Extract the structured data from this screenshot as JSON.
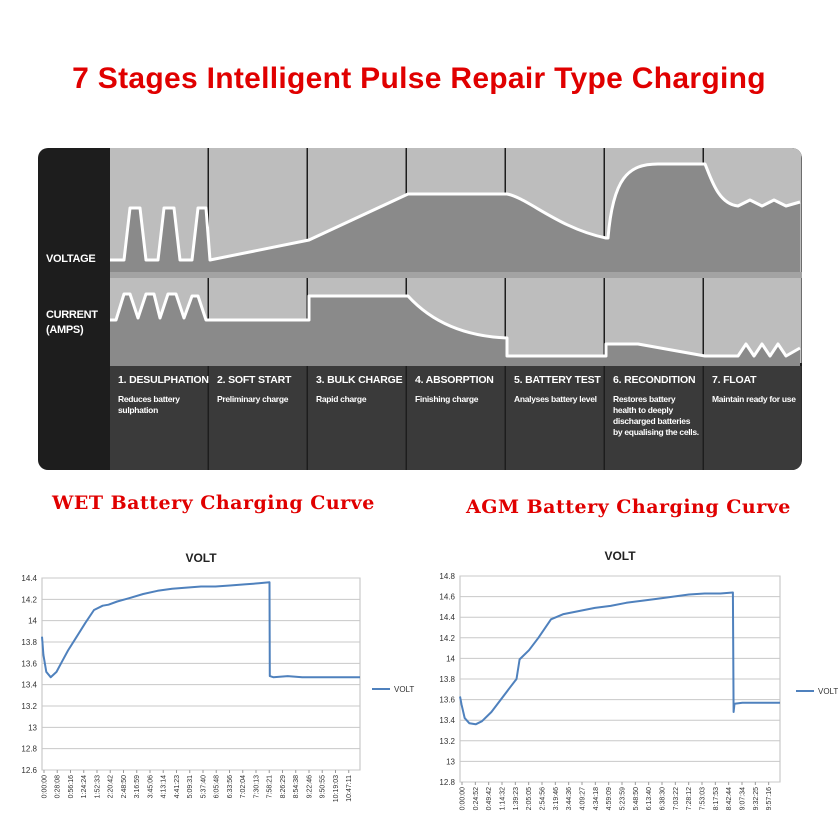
{
  "page": {
    "title": "7 Stages Intelligent Pulse Repair Type Charging"
  },
  "stage_diagram": {
    "row_labels": {
      "voltage": "VOLTAGE",
      "current": "CURRENT\n(AMPS)"
    },
    "stages": [
      {
        "name": "1. DESULPHATION",
        "desc": "Reduces battery sulphation"
      },
      {
        "name": "2. SOFT START",
        "desc": "Preliminary charge"
      },
      {
        "name": "3. BULK CHARGE",
        "desc": "Rapid charge"
      },
      {
        "name": "4. ABSORPTION",
        "desc": "Finishing charge"
      },
      {
        "name": "5. BATTERY TEST",
        "desc": "Analyses battery level"
      },
      {
        "name": "6. RECONDITION",
        "desc": "Restores battery health to deeply discharged batteries by equalising the cells."
      },
      {
        "name": "7. FLOAT",
        "desc": "Maintain ready for use"
      }
    ],
    "colors": {
      "background": "#1d1d1d",
      "cell_light": "#bdbdbd",
      "cell_dark": "#8a8a8a",
      "curve": "#ffffff"
    }
  },
  "chart_titles": {
    "wet": "WET Battery Charging Curve",
    "agm": "AGM Battery Charging Curve"
  },
  "chart_data": [
    {
      "type": "line",
      "title": "VOLT",
      "xlabel": "",
      "ylabel": "",
      "ylim": [
        12.6,
        14.4
      ],
      "yticks": [
        "14.4",
        "14.2",
        "14",
        "13.8",
        "13.6",
        "13.4",
        "13.2",
        "13",
        "12.8",
        "12.6"
      ],
      "x_tick_labels": [
        "0:00:00",
        "0:28:08",
        "0:56:16",
        "1:24:24",
        "1:52:33",
        "2:20:42",
        "2:48:50",
        "3:16:59",
        "3:45:06",
        "4:13:14",
        "4:41:23",
        "5:09:31",
        "5:37:40",
        "6:05:48",
        "6:33:56",
        "7:02:04",
        "7:30:13",
        "7:58:21",
        "8:26:29",
        "8:54:38",
        "9:22:46",
        "9:50:55",
        "10:19:03",
        "10:47:11"
      ],
      "x_range_hours": [
        0,
        11.0
      ],
      "grid": true,
      "legend_position": "right",
      "series": [
        {
          "name": "VOLT",
          "color": "#4f81bd",
          "x_hours": [
            0,
            0.05,
            0.15,
            0.3,
            0.5,
            0.7,
            0.9,
            1.2,
            1.5,
            1.8,
            2.1,
            2.3,
            2.6,
            3.0,
            3.5,
            4.0,
            4.5,
            5.0,
            5.5,
            6.0,
            6.5,
            7.0,
            7.5,
            7.87,
            7.88,
            8.0,
            8.5,
            9.0,
            9.5,
            10.0,
            10.5,
            11.0
          ],
          "values": [
            13.85,
            13.68,
            13.52,
            13.47,
            13.52,
            13.62,
            13.72,
            13.85,
            13.98,
            14.1,
            14.14,
            14.15,
            14.18,
            14.21,
            14.25,
            14.28,
            14.3,
            14.31,
            14.32,
            14.32,
            14.33,
            14.34,
            14.35,
            14.36,
            13.48,
            13.47,
            13.48,
            13.47,
            13.47,
            13.47,
            13.47,
            13.47
          ]
        }
      ]
    },
    {
      "type": "line",
      "title": "VOLT",
      "xlabel": "",
      "ylabel": "",
      "ylim": [
        12.8,
        14.8
      ],
      "yticks": [
        "14.8",
        "14.6",
        "14.4",
        "14.2",
        "14",
        "13.8",
        "13.6",
        "13.4",
        "13.2",
        "13",
        "12.8"
      ],
      "x_tick_labels": [
        "0:00:00",
        "0:24:52",
        "0:49:42",
        "1:14:32",
        "1:39:23",
        "2:05:05",
        "2:54:56",
        "3:19:46",
        "3:44:36",
        "4:09:27",
        "4:34:18",
        "4:59:09",
        "5:23:59",
        "5:48:50",
        "6:13:40",
        "6:38:30",
        "7:03:22",
        "7:28:12",
        "7:53:03",
        "8:17:53",
        "8:42:44",
        "9:07:34",
        "9:32:25",
        "9:57:16"
      ],
      "x_range_hours": [
        0,
        10.2
      ],
      "grid": true,
      "legend_position": "right",
      "series": [
        {
          "name": "VOLT",
          "color": "#4f81bd",
          "x_hours": [
            0,
            0.05,
            0.15,
            0.3,
            0.5,
            0.7,
            1.0,
            1.3,
            1.6,
            1.8,
            1.9,
            2.2,
            2.5,
            2.9,
            3.3,
            3.8,
            4.3,
            4.8,
            5.3,
            5.8,
            6.3,
            6.8,
            7.3,
            7.8,
            8.3,
            8.7,
            8.72,
            8.75,
            9.0,
            9.5,
            10.0,
            10.2
          ],
          "values": [
            13.63,
            13.55,
            13.42,
            13.37,
            13.36,
            13.39,
            13.48,
            13.6,
            13.72,
            13.8,
            13.99,
            14.08,
            14.2,
            14.38,
            14.43,
            14.46,
            14.49,
            14.51,
            14.54,
            14.56,
            14.58,
            14.6,
            14.62,
            14.63,
            14.63,
            14.64,
            13.48,
            13.56,
            13.57,
            13.57,
            13.57,
            13.57
          ]
        }
      ]
    }
  ]
}
